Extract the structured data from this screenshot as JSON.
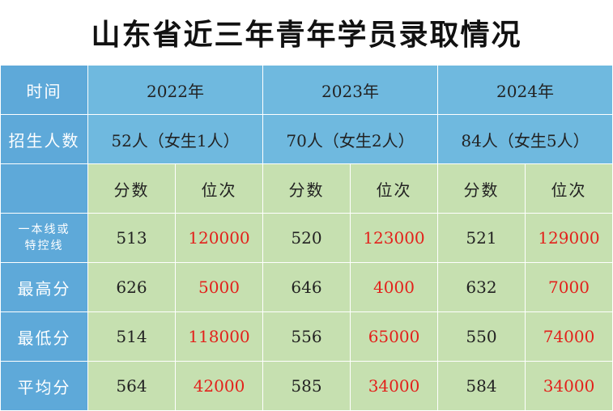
{
  "title": "山东省近三年青年学员录取情况",
  "labels": {
    "time": "时间",
    "enrollment": "招生人数",
    "line": "一本线或\n特控线",
    "highest": "最高分",
    "lowest": "最低分",
    "average": "平均分"
  },
  "subheaders": {
    "score": "分数",
    "rank": "位次"
  },
  "years": [
    {
      "year": "2022年",
      "enrollment": "52人（女生1人）",
      "line": {
        "score": "513",
        "rank": "120000"
      },
      "highest": {
        "score": "626",
        "rank": "5000"
      },
      "lowest": {
        "score": "514",
        "rank": "118000"
      },
      "average": {
        "score": "564",
        "rank": "42000"
      }
    },
    {
      "year": "2023年",
      "enrollment": "70人（女生2人）",
      "line": {
        "score": "520",
        "rank": "123000"
      },
      "highest": {
        "score": "646",
        "rank": "4000"
      },
      "lowest": {
        "score": "556",
        "rank": "65000"
      },
      "average": {
        "score": "585",
        "rank": "34000"
      }
    },
    {
      "year": "2024年",
      "enrollment": "84人（女生5人）",
      "line": {
        "score": "521",
        "rank": "129000"
      },
      "highest": {
        "score": "632",
        "rank": "7000"
      },
      "lowest": {
        "score": "550",
        "rank": "74000"
      },
      "average": {
        "score": "584",
        "rank": "34000"
      }
    }
  ],
  "colors": {
    "header_blue": "#6fb9df",
    "label_blue": "#5ea9d9",
    "data_green": "#c6e0b0",
    "rank_red": "#e3211b"
  }
}
